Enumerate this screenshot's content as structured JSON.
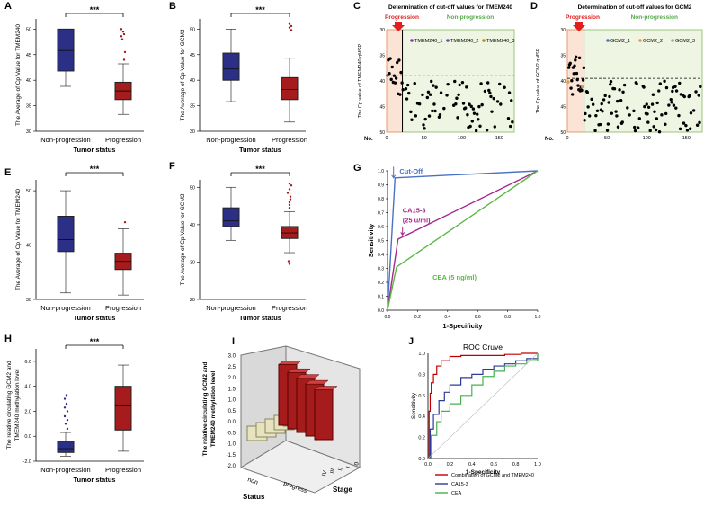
{
  "colors": {
    "blue_box": "#2b2f86",
    "red_box": "#a61b1b",
    "cutoff_blue": "#4a72c4",
    "ca153_purple": "#a6288e",
    "cea_green": "#5cb946",
    "roc_red": "#c00000",
    "roc_blue": "#2f3a9a",
    "roc_green": "#47b24d",
    "prog_red": "#e02020",
    "nonprog_green": "#55a84b",
    "dot_purple": "#7a3fb0",
    "dot_olive": "#a8901a",
    "dot_grey": "#a0a0a0",
    "dot_orange": "#e29a4b"
  },
  "sig": "***",
  "chart_data": [
    {
      "panel": "A",
      "type": "box",
      "ylabel": "The Average of Cp Value for TMEM240",
      "xlabel": "Tumor status",
      "ylim": [
        30,
        52
      ],
      "yticks": [
        30,
        35,
        40,
        45,
        50
      ],
      "categories": [
        "Non-progression",
        "Progression"
      ],
      "boxes": [
        {
          "name": "Non-progression",
          "min": 38.8,
          "q1": 41.8,
          "median": 45.8,
          "q3": 50,
          "max": 50
        },
        {
          "name": "Progression",
          "min": 33.3,
          "q1": 36.2,
          "median": 37.9,
          "q3": 39.6,
          "max": 43.2,
          "outliers": [
            44,
            45.5,
            48,
            48.6,
            49,
            49.5,
            50
          ]
        }
      ]
    },
    {
      "panel": "B",
      "type": "box",
      "ylabel": "The Average of Cp Value for GCM2",
      "xlabel": "Tumor status",
      "ylim": [
        30,
        52
      ],
      "yticks": [
        30,
        35,
        40,
        45,
        50
      ],
      "categories": [
        "Non-progression",
        "Progression"
      ],
      "boxes": [
        {
          "name": "Non-progression",
          "min": 35.8,
          "q1": 40,
          "median": 42.2,
          "q3": 45.3,
          "max": 50
        },
        {
          "name": "Progression",
          "min": 31.8,
          "q1": 36.2,
          "median": 38.2,
          "q3": 40.5,
          "max": 44.3,
          "outliers": [
            49.8,
            50.3,
            50.6,
            51
          ]
        }
      ]
    },
    {
      "panel": "C",
      "type": "scatter",
      "title": "Determination of cut-off values for TMEM240",
      "ylabel": "The Cp value of TMEM240 qMSP",
      "xlabel": "No.",
      "ylim": [
        30,
        50
      ],
      "yticks": [
        30,
        35,
        40,
        45,
        50
      ],
      "xlim": [
        0,
        170
      ],
      "xticks": [
        0,
        50,
        100,
        150
      ],
      "cutoff": 39,
      "split_x": 21,
      "region_left": "Progression",
      "region_right": "Non-progression",
      "legend": [
        "TMEM240_1",
        "TMEM240_2",
        "TMEM240_3"
      ]
    },
    {
      "panel": "D",
      "type": "scatter",
      "title": "Determination of cut-off values for GCM2",
      "ylabel": "The Cp value of GCM2 qMSP",
      "xlabel": "No.",
      "ylim": [
        30,
        50
      ],
      "yticks": [
        30,
        35,
        40,
        45,
        50
      ],
      "xlim": [
        0,
        170
      ],
      "xticks": [
        0,
        50,
        100,
        150
      ],
      "cutoff": 39.5,
      "split_x": 21,
      "region_left": "Progression",
      "region_right": "Non-progression",
      "legend": [
        "GCM2_1",
        "GCM2_2",
        "GCM2_3"
      ]
    },
    {
      "panel": "E",
      "type": "box",
      "ylabel": "The Average of Cp Value for TMEM240",
      "xlabel": "Tumor status",
      "ylim": [
        30,
        52
      ],
      "yticks": [
        30,
        40,
        50
      ],
      "categories": [
        "Non-progression",
        "Progression"
      ],
      "boxes": [
        {
          "name": "Non-progression",
          "min": 31.2,
          "q1": 38.8,
          "median": 41,
          "q3": 45.3,
          "max": 50
        },
        {
          "name": "Progression",
          "min": 30.8,
          "q1": 35.5,
          "median": 37,
          "q3": 38.5,
          "max": 43,
          "outliers": [
            44.2
          ]
        }
      ]
    },
    {
      "panel": "F",
      "type": "box",
      "ylabel": "The Average of Cp Value for GCM2",
      "xlabel": "Tumor status",
      "ylim": [
        20,
        52
      ],
      "yticks": [
        20,
        30,
        40,
        50
      ],
      "categories": [
        "Non-progression",
        "Progression"
      ],
      "boxes": [
        {
          "name": "Non-progression",
          "min": 35.8,
          "q1": 39.5,
          "median": 41,
          "q3": 44.5,
          "max": 50
        },
        {
          "name": "Progression",
          "min": 32.5,
          "q1": 36.3,
          "median": 37.8,
          "q3": 39.5,
          "max": 43.5,
          "outliers": [
            44.5,
            45.3,
            46,
            46.8,
            47.5,
            48.5,
            49.5,
            50.5,
            51,
            30.2,
            29.5
          ]
        }
      ]
    },
    {
      "panel": "G",
      "type": "line",
      "xlabel": "1-Specificity",
      "ylabel": "Sensitivity",
      "xlim": [
        0,
        1
      ],
      "ylim": [
        0,
        1
      ],
      "xticks": [
        0,
        0.2,
        0.4,
        0.6,
        0.8,
        1.0
      ],
      "yticks": [
        0,
        0.1,
        0.2,
        0.3,
        0.4,
        0.5,
        0.6,
        0.7,
        0.8,
        0.9,
        1.0
      ],
      "series": [
        {
          "name": "Cut-Off",
          "x": [
            0,
            0.05,
            1
          ],
          "y": [
            0,
            0.95,
            1
          ]
        },
        {
          "name": "CA15-3 (25 u/ml)",
          "x": [
            0,
            0.07,
            1
          ],
          "y": [
            0,
            0.51,
            1
          ]
        },
        {
          "name": "CEA (5 ng/ml)",
          "x": [
            0,
            0.06,
            1
          ],
          "y": [
            0,
            0.31,
            1
          ]
        }
      ],
      "labels": {
        "cutoff": "Cut-Off",
        "ca153_line1": "CA15-3",
        "ca153_line2": "(25 u/ml)",
        "cea": "CEA (5 ng/ml)"
      }
    },
    {
      "panel": "H",
      "type": "box",
      "ylabel_line1": "The relative circulating GCM2 and",
      "ylabel_line2": "TMEM240 methylation level",
      "xlabel": "Tumor status",
      "ylim": [
        -2,
        7
      ],
      "yticks": [
        -2.0,
        0.0,
        2.0,
        4.0,
        6.0
      ],
      "categories": [
        "Non-progression",
        "Progression"
      ],
      "boxes": [
        {
          "name": "Non-progression",
          "min": -1.6,
          "q1": -1.3,
          "median": -1.0,
          "q3": -0.4,
          "max": 0.3,
          "outliers": [
            0.6,
            1.0,
            1.3,
            1.6,
            2.0,
            2.3,
            2.6,
            3.0,
            3.3
          ]
        },
        {
          "name": "Progression",
          "min": -1.2,
          "q1": 0.5,
          "median": 2.5,
          "q3": 4.0,
          "max": 5.7
        }
      ]
    },
    {
      "panel": "I",
      "type": "bar3d",
      "zlabel_line1": "The relative circulating GCM2 and",
      "zlabel_line2": "TMEM240 methylation level",
      "zticks": [
        -2.0,
        -1.5,
        -1.0,
        -0.5,
        0.0,
        0.5,
        1.0,
        1.5,
        2.0,
        2.5,
        3.0
      ],
      "status_label": "Status",
      "stage_label": "Stage",
      "status_categories": [
        "non",
        "progress"
      ],
      "stage_categories": [
        "IV",
        "III",
        "II",
        "I",
        "0"
      ],
      "values": {
        "progress": [
          2.6,
          2.4,
          2.3,
          2.2,
          2.1
        ],
        "non": [
          -0.7,
          -0.8,
          -0.9,
          -1.0,
          -1.0
        ]
      }
    },
    {
      "panel": "J",
      "type": "line",
      "title": "ROC Cruve",
      "xlabel": "1-Specificity",
      "ylabel": "Sensitivity",
      "xlim": [
        0,
        1
      ],
      "ylim": [
        0,
        1
      ],
      "xticks": [
        0.0,
        0.2,
        0.4,
        0.6,
        0.8,
        1.0
      ],
      "yticks": [
        0.0,
        0.2,
        0.4,
        0.6,
        0.8,
        1.0
      ],
      "series": [
        {
          "name": "Combination of GCM2 and TMEM240",
          "x": [
            0,
            0.01,
            0.02,
            0.03,
            0.05,
            0.08,
            0.12,
            0.2,
            0.3,
            0.5,
            0.7,
            0.85,
            1
          ],
          "y": [
            0,
            0.45,
            0.62,
            0.72,
            0.8,
            0.88,
            0.93,
            0.97,
            0.98,
            0.98,
            0.99,
            1,
            1
          ]
        },
        {
          "name": "CA15-3",
          "x": [
            0,
            0.02,
            0.05,
            0.1,
            0.15,
            0.2,
            0.3,
            0.4,
            0.5,
            0.6,
            0.7,
            0.8,
            0.9,
            1
          ],
          "y": [
            0,
            0.28,
            0.42,
            0.55,
            0.63,
            0.7,
            0.77,
            0.8,
            0.85,
            0.88,
            0.9,
            0.93,
            0.95,
            1
          ]
        },
        {
          "name": "CEA",
          "x": [
            0,
            0.03,
            0.08,
            0.12,
            0.2,
            0.3,
            0.4,
            0.5,
            0.6,
            0.7,
            0.8,
            0.9,
            1
          ],
          "y": [
            0,
            0.22,
            0.35,
            0.45,
            0.52,
            0.6,
            0.7,
            0.78,
            0.83,
            0.88,
            0.9,
            0.93,
            1
          ]
        }
      ]
    }
  ]
}
